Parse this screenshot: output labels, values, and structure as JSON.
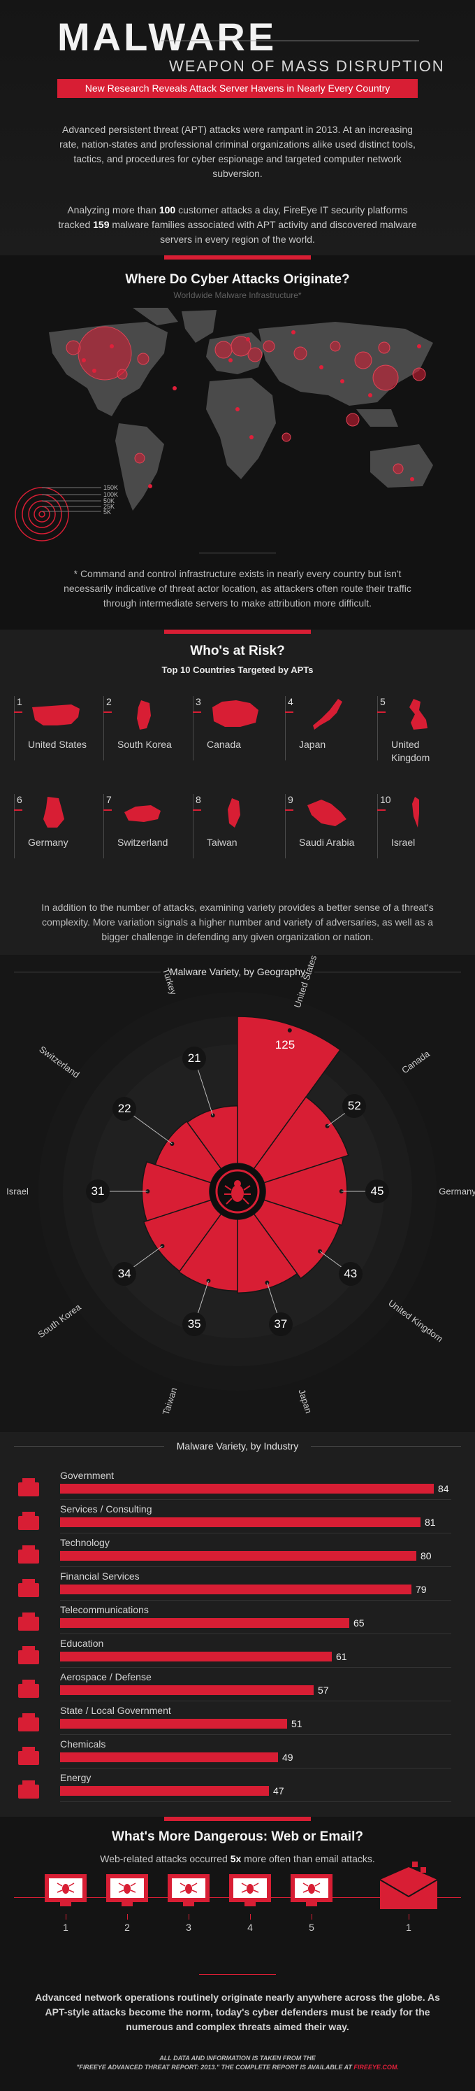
{
  "header": {
    "title": "MALWARE",
    "subtitle": "WEAPON OF MASS DISRUPTION",
    "banner": "New Research Reveals Attack Server Havens in Nearly Every Country",
    "intro_1": "Advanced persistent threat (APT) attacks were rampant in 2013. At an increasing rate, nation-states and professional criminal organizations alike used distinct tools, tactics, and procedures for cyber espionage and targeted computer network subversion.",
    "intro_2_a": "Analyzing more than ",
    "intro_2_num1": "100",
    "intro_2_b": " customer attacks a day, FireEye IT security platforms tracked ",
    "intro_2_num2": "159",
    "intro_2_c": " malware families associated with APT activity and discovered malware servers in every region of the world."
  },
  "map": {
    "title": "Where Do Cyber Attacks Originate?",
    "subtitle": "Worldwide Malware Infrastructure*",
    "legend": [
      "150K",
      "100K",
      "50K",
      "25K",
      "5K"
    ],
    "note": "* Command and control infrastructure exists in nearly every country but isn't necessarily indicative of threat actor location, as attackers often route their traffic through intermediate servers to make attribution more difficult."
  },
  "risk": {
    "title": "Who's at Risk?",
    "subtitle": "Top 10 Countries Targeted by APTs",
    "countries": [
      {
        "num": "1",
        "name": "United States"
      },
      {
        "num": "2",
        "name": "South Korea"
      },
      {
        "num": "3",
        "name": "Canada"
      },
      {
        "num": "4",
        "name": "Japan"
      },
      {
        "num": "5",
        "name": "United Kingdom"
      },
      {
        "num": "6",
        "name": "Germany"
      },
      {
        "num": "7",
        "name": "Switzerland"
      },
      {
        "num": "8",
        "name": "Taiwan"
      },
      {
        "num": "9",
        "name": "Saudi Arabia"
      },
      {
        "num": "10",
        "name": "Israel"
      }
    ],
    "paragraph": "In addition to the number of attacks, examining variety provides a better sense of a threat's complexity. More variation signals a higher number and variety of adversaries, as well as a bigger challenge in defending any given organization or nation."
  },
  "geography": {
    "title": "Malware Variety, by Geography",
    "items": [
      {
        "name": "United States",
        "value": 125
      },
      {
        "name": "Canada",
        "value": 52
      },
      {
        "name": "Germany",
        "value": 45
      },
      {
        "name": "United Kingdom",
        "value": 43
      },
      {
        "name": "Japan",
        "value": 37
      },
      {
        "name": "Taiwan",
        "value": 35
      },
      {
        "name": "South Korea",
        "value": 34
      },
      {
        "name": "Israel",
        "value": 31
      },
      {
        "name": "Switzerland",
        "value": 22
      },
      {
        "name": "Turkey",
        "value": 21
      }
    ]
  },
  "industry": {
    "title": "Malware Variety, by Industry",
    "items": [
      {
        "name": "Government",
        "value": 84,
        "icon": "government-building-icon"
      },
      {
        "name": "Services / Consulting",
        "value": 81,
        "icon": "services-tools-icon"
      },
      {
        "name": "Technology",
        "value": 80,
        "icon": "technology-satellite-icon"
      },
      {
        "name": "Financial Services",
        "value": 79,
        "icon": "money-icon"
      },
      {
        "name": "Telecommunications",
        "value": 65,
        "icon": "phone-icon"
      },
      {
        "name": "Education",
        "value": 61,
        "icon": "book-icon"
      },
      {
        "name": "Aerospace / Defense",
        "value": 57,
        "icon": "airplane-icon"
      },
      {
        "name": "State / Local Government",
        "value": 51,
        "icon": "city-icon"
      },
      {
        "name": "Chemicals",
        "value": 49,
        "icon": "test-tube-icon"
      },
      {
        "name": "Energy",
        "value": 47,
        "icon": "lightbulb-icon"
      }
    ]
  },
  "web_email": {
    "title": "What's More Dangerous: Web or Email?",
    "text_a": "Web-related attacks occurred ",
    "text_b": "5x",
    "text_c": " more often than email attacks.",
    "web_nums": [
      "1",
      "2",
      "3",
      "4",
      "5"
    ],
    "email_num": "1"
  },
  "footer": {
    "text": "Advanced network operations routinely originate nearly anywhere across the globe. As APT-style attacks become the norm, today's cyber defenders must be ready for the numerous and complex threats aimed their way.",
    "source_1": "ALL DATA AND INFORMATION IS TAKEN FROM THE",
    "source_2a": "\"FIREEYE ADVANCED THREAT REPORT: 2013.\" THE COMPLETE REPORT IS AVAILABLE AT ",
    "source_2b": "FIREEYE.COM."
  },
  "colors": {
    "accent": "#d81e34",
    "background": "#1e1e1e",
    "dark": "#121212"
  }
}
